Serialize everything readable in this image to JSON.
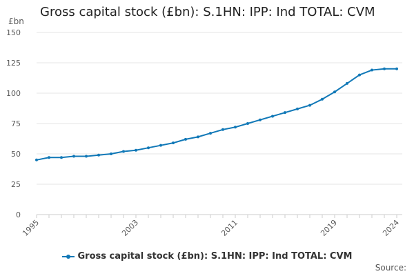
{
  "chart_data": {
    "type": "line",
    "title": "Gross capital stock (£bn): S.1HN: IPP: Ind TOTAL: CVM",
    "ylabel": "£bn",
    "xlabel": "",
    "x": [
      1995,
      1996,
      1997,
      1998,
      1999,
      2000,
      2001,
      2002,
      2003,
      2004,
      2005,
      2006,
      2007,
      2008,
      2009,
      2010,
      2011,
      2012,
      2013,
      2014,
      2015,
      2016,
      2017,
      2018,
      2019,
      2020,
      2021,
      2022,
      2023,
      2024
    ],
    "series": [
      {
        "name": "Gross capital stock (£bn): S.1HN: IPP: Ind TOTAL: CVM",
        "color": "#1078b7",
        "values": [
          45,
          47,
          47,
          48,
          48,
          49,
          50,
          52,
          53,
          55,
          57,
          59,
          62,
          64,
          67,
          70,
          72,
          75,
          78,
          81,
          84,
          87,
          90,
          95,
          101,
          108,
          115,
          119,
          120,
          120
        ]
      }
    ],
    "ylim": [
      0,
      150
    ],
    "xlim": [
      1995,
      2024
    ],
    "y_ticks": [
      0,
      25,
      50,
      75,
      100,
      125,
      150
    ],
    "x_ticks": [
      1995,
      2003,
      2011,
      2019,
      2024
    ],
    "grid": "horizontal",
    "legend_position": "bottom",
    "source_label": "Source:"
  }
}
